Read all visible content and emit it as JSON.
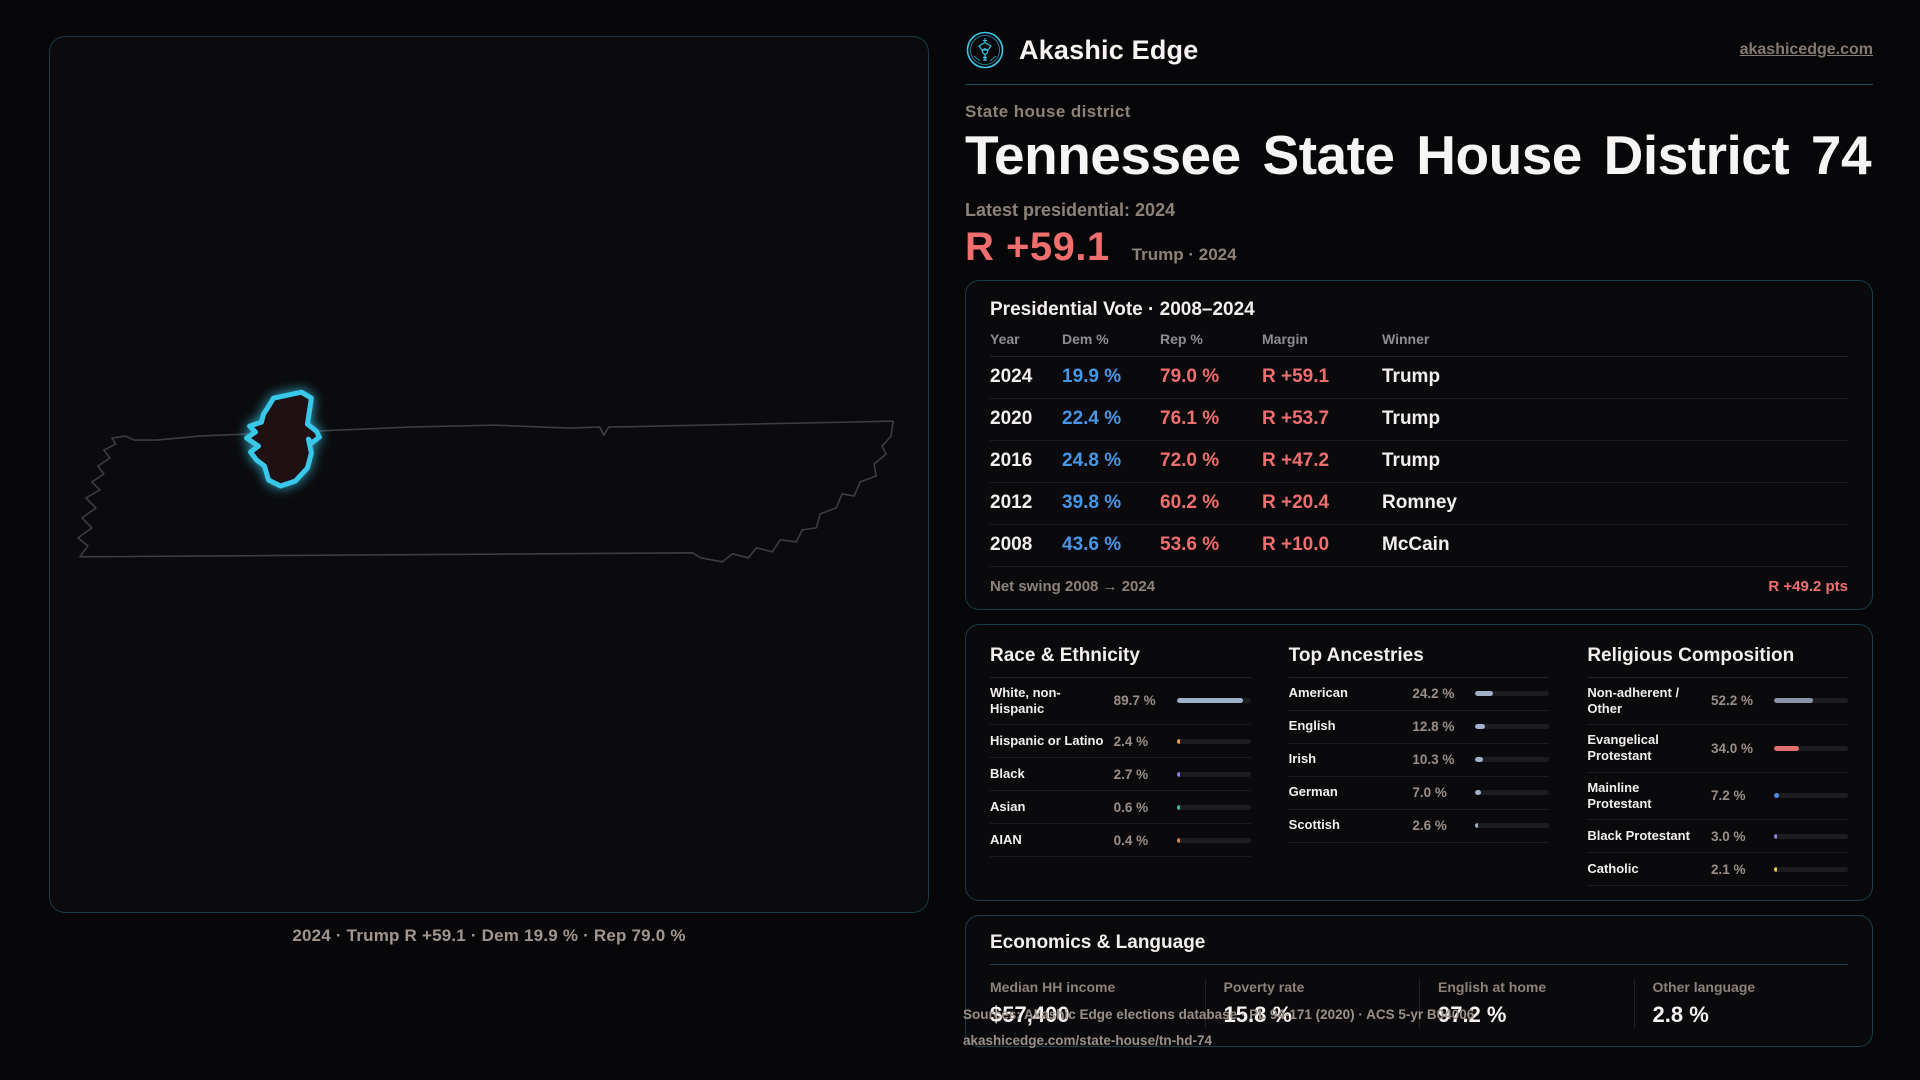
{
  "site": {
    "brand": "Akashic Edge",
    "domain": "akashicedge.com",
    "logo_icon": "akashic-emblem-icon",
    "accent_color": "#3ac8ea"
  },
  "page": {
    "eyebrow": "State house district",
    "title": "Tennessee State House District 74",
    "latest_label": "Latest presidential: 2024",
    "headline_margin": "R +59.1",
    "headline_context": "Trump · 2024"
  },
  "map": {
    "state": "Tennessee",
    "caption": "2024 · Trump R +59.1 · Dem 19.9 % · Rep 79.0 %",
    "district_stroke_color": "#3ac8ea",
    "state_outline_color": "#3d3d42"
  },
  "vote_table": {
    "title": "Presidential Vote · 2008–2024",
    "columns": [
      "Year",
      "Dem %",
      "Rep %",
      "Margin",
      "Winner"
    ],
    "rows": [
      {
        "year": "2024",
        "dem": "19.9 %",
        "rep": "79.0 %",
        "margin": "R +59.1",
        "winner": "Trump"
      },
      {
        "year": "2020",
        "dem": "22.4 %",
        "rep": "76.1 %",
        "margin": "R +53.7",
        "winner": "Trump"
      },
      {
        "year": "2016",
        "dem": "24.8 %",
        "rep": "72.0 %",
        "margin": "R +47.2",
        "winner": "Trump"
      },
      {
        "year": "2012",
        "dem": "39.8 %",
        "rep": "60.2 %",
        "margin": "R +20.4",
        "winner": "Romney"
      },
      {
        "year": "2008",
        "dem": "43.6 %",
        "rep": "53.6 %",
        "margin": "R +10.0",
        "winner": "McCain"
      }
    ],
    "footer_label": "Net swing 2008 → 2024",
    "footer_value": "R +49.2 pts",
    "dem_color": "#4896e8",
    "rep_color": "#f06e6e"
  },
  "panels": {
    "race": {
      "title": "Race & Ethnicity",
      "rows": [
        {
          "label": "White, non-Hispanic",
          "value": "89.7 %",
          "value_pct": 89.7,
          "color": "#9fb0c9"
        },
        {
          "label": "Hispanic or Latino",
          "value": "2.4 %",
          "value_pct": 2.4,
          "color": "#e8a33d"
        },
        {
          "label": "Black",
          "value": "2.7 %",
          "value_pct": 2.7,
          "color": "#8f7fe8"
        },
        {
          "label": "Asian",
          "value": "0.6 %",
          "value_pct": 0.6,
          "color": "#3dbf9a"
        },
        {
          "label": "AIAN",
          "value": "0.4 %",
          "value_pct": 0.4,
          "color": "#d9883d"
        }
      ]
    },
    "ancestries": {
      "title": "Top Ancestries",
      "rows": [
        {
          "label": "American",
          "value": "24.2 %",
          "value_pct": 24.2,
          "color": "#9fb0c9"
        },
        {
          "label": "English",
          "value": "12.8 %",
          "value_pct": 12.8,
          "color": "#9fb0c9"
        },
        {
          "label": "Irish",
          "value": "10.3 %",
          "value_pct": 10.3,
          "color": "#9fb0c9"
        },
        {
          "label": "German",
          "value": "7.0 %",
          "value_pct": 7.0,
          "color": "#9fb0c9"
        },
        {
          "label": "Scottish",
          "value": "2.6 %",
          "value_pct": 2.6,
          "color": "#9fb0c9"
        }
      ]
    },
    "religion": {
      "title": "Religious Composition",
      "rows": [
        {
          "label": "Non-adherent / Other",
          "value": "52.2 %",
          "value_pct": 52.2,
          "color": "#8a93a8"
        },
        {
          "label": "Evangelical Protestant",
          "value": "34.0 %",
          "value_pct": 34.0,
          "color": "#e07070"
        },
        {
          "label": "Mainline Protestant",
          "value": "7.2 %",
          "value_pct": 7.2,
          "color": "#4d8fe8"
        },
        {
          "label": "Black Protestant",
          "value": "3.0 %",
          "value_pct": 3.0,
          "color": "#9b7fe8"
        },
        {
          "label": "Catholic",
          "value": "2.1 %",
          "value_pct": 2.1,
          "color": "#e8c84d"
        }
      ]
    }
  },
  "economics": {
    "title": "Economics & Language",
    "stats": [
      {
        "label": "Median HH income",
        "value": "$57,400"
      },
      {
        "label": "Poverty rate",
        "value": "15.8 %"
      },
      {
        "label": "English at home",
        "value": "97.2 %"
      },
      {
        "label": "Other language",
        "value": "2.8 %"
      }
    ]
  },
  "sources": {
    "line1": "Sources: Akashic Edge elections database · PL 94-171 (2020) · ACS 5-yr B04006",
    "line2": "akashicedge.com/state-house/tn-hd-74"
  }
}
